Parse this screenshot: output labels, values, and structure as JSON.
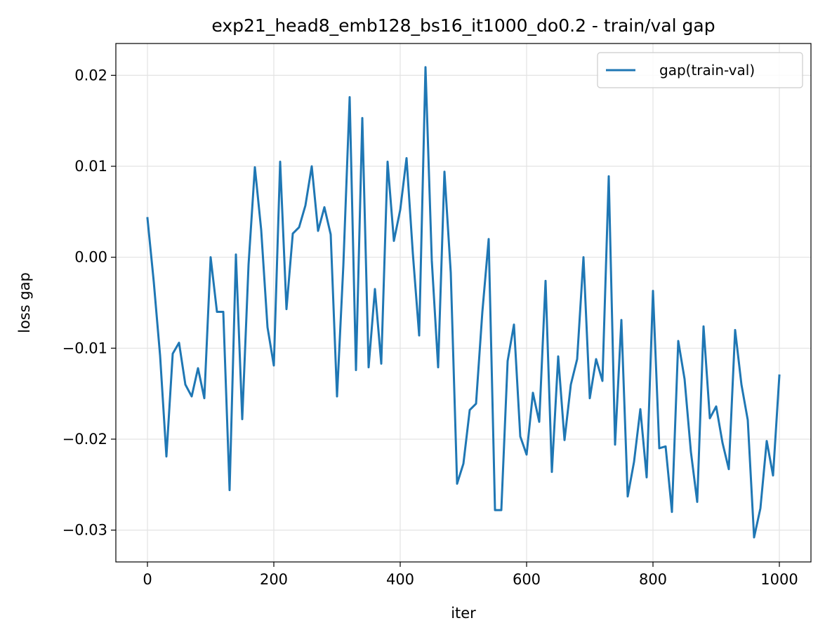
{
  "chart_data": {
    "type": "line",
    "title": "exp21_head8_emb128_bs16_it1000_do0.2 - train/val gap",
    "xlabel": "iter",
    "ylabel": "loss gap",
    "xlim": [
      -50,
      1050
    ],
    "ylim": [
      -0.0335,
      0.0235
    ],
    "xticks": [
      0,
      200,
      400,
      600,
      800,
      1000
    ],
    "xtick_labels": [
      "0",
      "200",
      "400",
      "600",
      "800",
      "1000"
    ],
    "yticks": [
      -0.03,
      -0.02,
      -0.01,
      0.0,
      0.01,
      0.02
    ],
    "ytick_labels": [
      "−0.03",
      "−0.02",
      "−0.01",
      "0.00",
      "0.01",
      "0.02"
    ],
    "grid": true,
    "legend_position": "top-right",
    "series": [
      {
        "name": "gap(train-val)",
        "color": "#1f77b4",
        "x": [
          0,
          10,
          20,
          30,
          40,
          50,
          60,
          70,
          80,
          90,
          100,
          110,
          120,
          130,
          140,
          150,
          160,
          170,
          180,
          190,
          200,
          210,
          220,
          230,
          240,
          250,
          260,
          270,
          280,
          290,
          300,
          310,
          320,
          330,
          340,
          350,
          360,
          370,
          380,
          390,
          400,
          410,
          420,
          430,
          440,
          450,
          460,
          470,
          480,
          490,
          500,
          510,
          520,
          530,
          540,
          550,
          560,
          570,
          580,
          590,
          600,
          610,
          620,
          630,
          640,
          650,
          660,
          670,
          680,
          690,
          700,
          710,
          720,
          730,
          740,
          750,
          760,
          770,
          780,
          790,
          800,
          810,
          820,
          830,
          840,
          850,
          860,
          870,
          880,
          890,
          900,
          910,
          920,
          930,
          940,
          950,
          960,
          970,
          980,
          990,
          1000
        ],
        "y": [
          0.0043,
          -0.0027,
          -0.0108,
          -0.0219,
          -0.0106,
          -0.0094,
          -0.014,
          -0.0153,
          -0.0122,
          -0.0155,
          0.0,
          -0.006,
          -0.006,
          -0.0256,
          0.0003,
          -0.0178,
          -0.0008,
          0.0099,
          0.003,
          -0.0077,
          -0.0119,
          0.0105,
          -0.0057,
          0.0026,
          0.0033,
          0.0057,
          0.01,
          0.0029,
          0.0055,
          0.0025,
          -0.0153,
          -0.0009,
          0.0176,
          -0.0124,
          0.0153,
          -0.0121,
          -0.0035,
          -0.0117,
          0.0105,
          0.0018,
          0.0052,
          0.0109,
          0.0004,
          -0.0086,
          0.0209,
          -0.0004,
          -0.0121,
          0.0094,
          -0.0017,
          -0.0249,
          -0.0227,
          -0.0168,
          -0.0161,
          -0.006,
          0.002,
          -0.0278,
          -0.0278,
          -0.0114,
          -0.0074,
          -0.0197,
          -0.0217,
          -0.0149,
          -0.0181,
          -0.0026,
          -0.0236,
          -0.0109,
          -0.0201,
          -0.014,
          -0.0112,
          0.0,
          -0.0155,
          -0.0112,
          -0.0136,
          0.0089,
          -0.0206,
          -0.0069,
          -0.0263,
          -0.0225,
          -0.0167,
          -0.0242,
          -0.0037,
          -0.021,
          -0.0208,
          -0.028,
          -0.0092,
          -0.0134,
          -0.0214,
          -0.0269,
          -0.0076,
          -0.0177,
          -0.0164,
          -0.0204,
          -0.0233,
          -0.008,
          -0.014,
          -0.0179,
          -0.0308,
          -0.0276,
          -0.0202,
          -0.024,
          -0.013
        ]
      }
    ]
  }
}
